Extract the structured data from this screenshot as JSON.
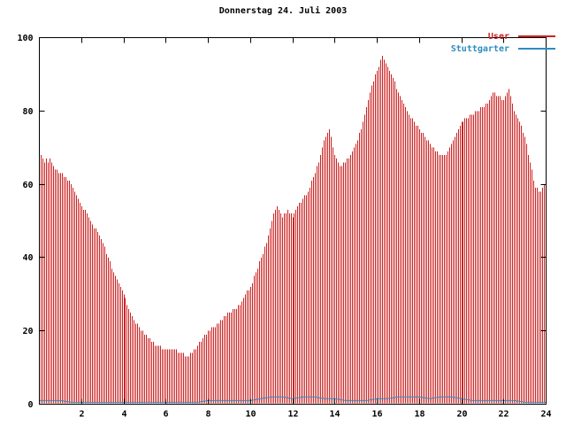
{
  "chart_data": {
    "type": "bar",
    "title": "Donnerstag 24. Juli 2003",
    "xlabel": "",
    "ylabel": "",
    "xlim": [
      0,
      24
    ],
    "ylim": [
      0,
      100
    ],
    "x_ticks": [
      2,
      4,
      6,
      8,
      10,
      12,
      14,
      16,
      18,
      20,
      22,
      24
    ],
    "y_ticks": [
      0,
      20,
      40,
      60,
      80,
      100
    ],
    "grid": false,
    "legend_position": "top-right",
    "axis_color": "#000000",
    "background_color": "#ffffff",
    "series": [
      {
        "name": "User",
        "style": "impulses",
        "color": "#cc2222",
        "x_start_hour": 0,
        "x_step_minutes": 5,
        "values": [
          69,
          68,
          67,
          66,
          67,
          66,
          67,
          66,
          65,
          64,
          64,
          63,
          63,
          63,
          62,
          62,
          61,
          61,
          60,
          59,
          58,
          57,
          56,
          55,
          54,
          53,
          53,
          52,
          51,
          50,
          49,
          48,
          48,
          47,
          46,
          45,
          44,
          43,
          41,
          40,
          39,
          37,
          36,
          35,
          34,
          33,
          32,
          31,
          30,
          29,
          27,
          26,
          25,
          24,
          23,
          22,
          22,
          21,
          20,
          20,
          19,
          19,
          18,
          18,
          17,
          17,
          16,
          16,
          16,
          16,
          15,
          15,
          15,
          15,
          15,
          15,
          15,
          15,
          15,
          14,
          14,
          14,
          14,
          13,
          13,
          13,
          14,
          14,
          15,
          15,
          16,
          17,
          17,
          18,
          19,
          19,
          20,
          20,
          21,
          21,
          21,
          22,
          22,
          23,
          23,
          24,
          24,
          25,
          25,
          25,
          26,
          26,
          26,
          27,
          27,
          28,
          29,
          30,
          31,
          31,
          32,
          33,
          35,
          36,
          37,
          39,
          40,
          41,
          43,
          44,
          46,
          48,
          50,
          52,
          53,
          54,
          53,
          52,
          51,
          52,
          52,
          53,
          52,
          52,
          51,
          52,
          53,
          54,
          55,
          55,
          56,
          57,
          57,
          58,
          59,
          61,
          62,
          63,
          65,
          66,
          68,
          70,
          72,
          73,
          74,
          75,
          73,
          70,
          68,
          67,
          66,
          65,
          65,
          66,
          66,
          67,
          67,
          68,
          69,
          70,
          71,
          72,
          74,
          75,
          77,
          79,
          81,
          83,
          85,
          87,
          88,
          90,
          91,
          92,
          94,
          95,
          94,
          93,
          92,
          91,
          90,
          89,
          88,
          86,
          85,
          84,
          83,
          82,
          81,
          80,
          79,
          78,
          78,
          77,
          76,
          76,
          75,
          74,
          74,
          73,
          72,
          72,
          71,
          70,
          70,
          69,
          69,
          68,
          68,
          68,
          68,
          68,
          69,
          70,
          71,
          72,
          73,
          74,
          75,
          76,
          77,
          77,
          78,
          78,
          78,
          79,
          79,
          79,
          80,
          80,
          80,
          81,
          81,
          81,
          82,
          82,
          83,
          84,
          85,
          85,
          84,
          84,
          84,
          83,
          83,
          84,
          85,
          86,
          84,
          82,
          80,
          79,
          78,
          77,
          76,
          74,
          73,
          71,
          68,
          66,
          64,
          61,
          59,
          59,
          58,
          58,
          59,
          60
        ]
      },
      {
        "name": "Stuttgarter",
        "style": "line",
        "color": "#2e8bc0",
        "x_start_hour": 0,
        "x_step_minutes": 30,
        "values": [
          1,
          1,
          1,
          0.5,
          0.5,
          0.5,
          0.5,
          0.5,
          0.5,
          0.5,
          0.5,
          0.5,
          0.5,
          0.5,
          0.5,
          0.5,
          1,
          1,
          1,
          1,
          1,
          1.5,
          2,
          2,
          1.5,
          2,
          2,
          1.5,
          1.5,
          1,
          1,
          1,
          1.5,
          1.5,
          2,
          2,
          2,
          1.5,
          2,
          2,
          1.5,
          1,
          1,
          1,
          1,
          1,
          0.5,
          0.5,
          0.5
        ]
      }
    ]
  }
}
